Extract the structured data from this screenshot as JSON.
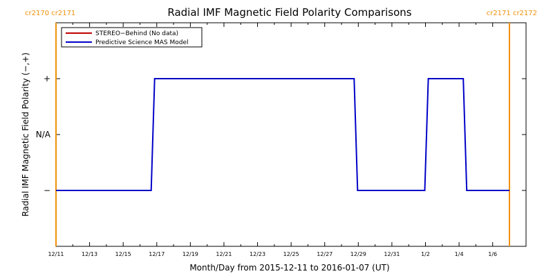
{
  "chart_data": {
    "type": "line",
    "title": "Radial IMF Magnetic Field Polarity Comparisons",
    "xlabel": "Month/Day from 2015-12-11 to 2016-01-07 (UT)",
    "ylabel": "Radial IMF Magnetic Field Polarity (−,+)",
    "xlim": [
      "2015-12-11",
      "2016-01-07"
    ],
    "x_tick_labels": [
      "12/11",
      "12/13",
      "12/15",
      "12/17",
      "12/19",
      "12/21",
      "12/23",
      "12/25",
      "12/27",
      "12/29",
      "12/31",
      "1/2",
      "1/4",
      "1/6"
    ],
    "y_categories": [
      "−",
      "N/A",
      "+"
    ],
    "y_tick_labels": [
      "+",
      "N/A",
      "−"
    ],
    "ylim": [
      -2,
      2
    ],
    "carrington_labels": {
      "left": "cr2170 cr2171",
      "right": "cr2171 cr2172",
      "color": "#f0900a",
      "marker_dates": [
        "2015-12-11",
        "2016-01-07"
      ]
    },
    "series": [
      {
        "name": "STEREO−Behind (No data)",
        "color": "#c00000",
        "points": []
      },
      {
        "name": "Predictive Science MAS Model",
        "color": "#0000c8",
        "points": [
          {
            "x": "2015-12-11 00:00",
            "y": "−"
          },
          {
            "x": "2015-12-16 16:00",
            "y": "−"
          },
          {
            "x": "2015-12-16 21:00",
            "y": "+"
          },
          {
            "x": "2015-12-28 18:00",
            "y": "+"
          },
          {
            "x": "2015-12-28 23:00",
            "y": "−"
          },
          {
            "x": "2016-01-01 23:00",
            "y": "−"
          },
          {
            "x": "2016-01-02 04:00",
            "y": "+"
          },
          {
            "x": "2016-01-04 06:00",
            "y": "+"
          },
          {
            "x": "2016-01-04 11:00",
            "y": "−"
          },
          {
            "x": "2016-01-07 00:00",
            "y": "−"
          }
        ]
      }
    ]
  }
}
